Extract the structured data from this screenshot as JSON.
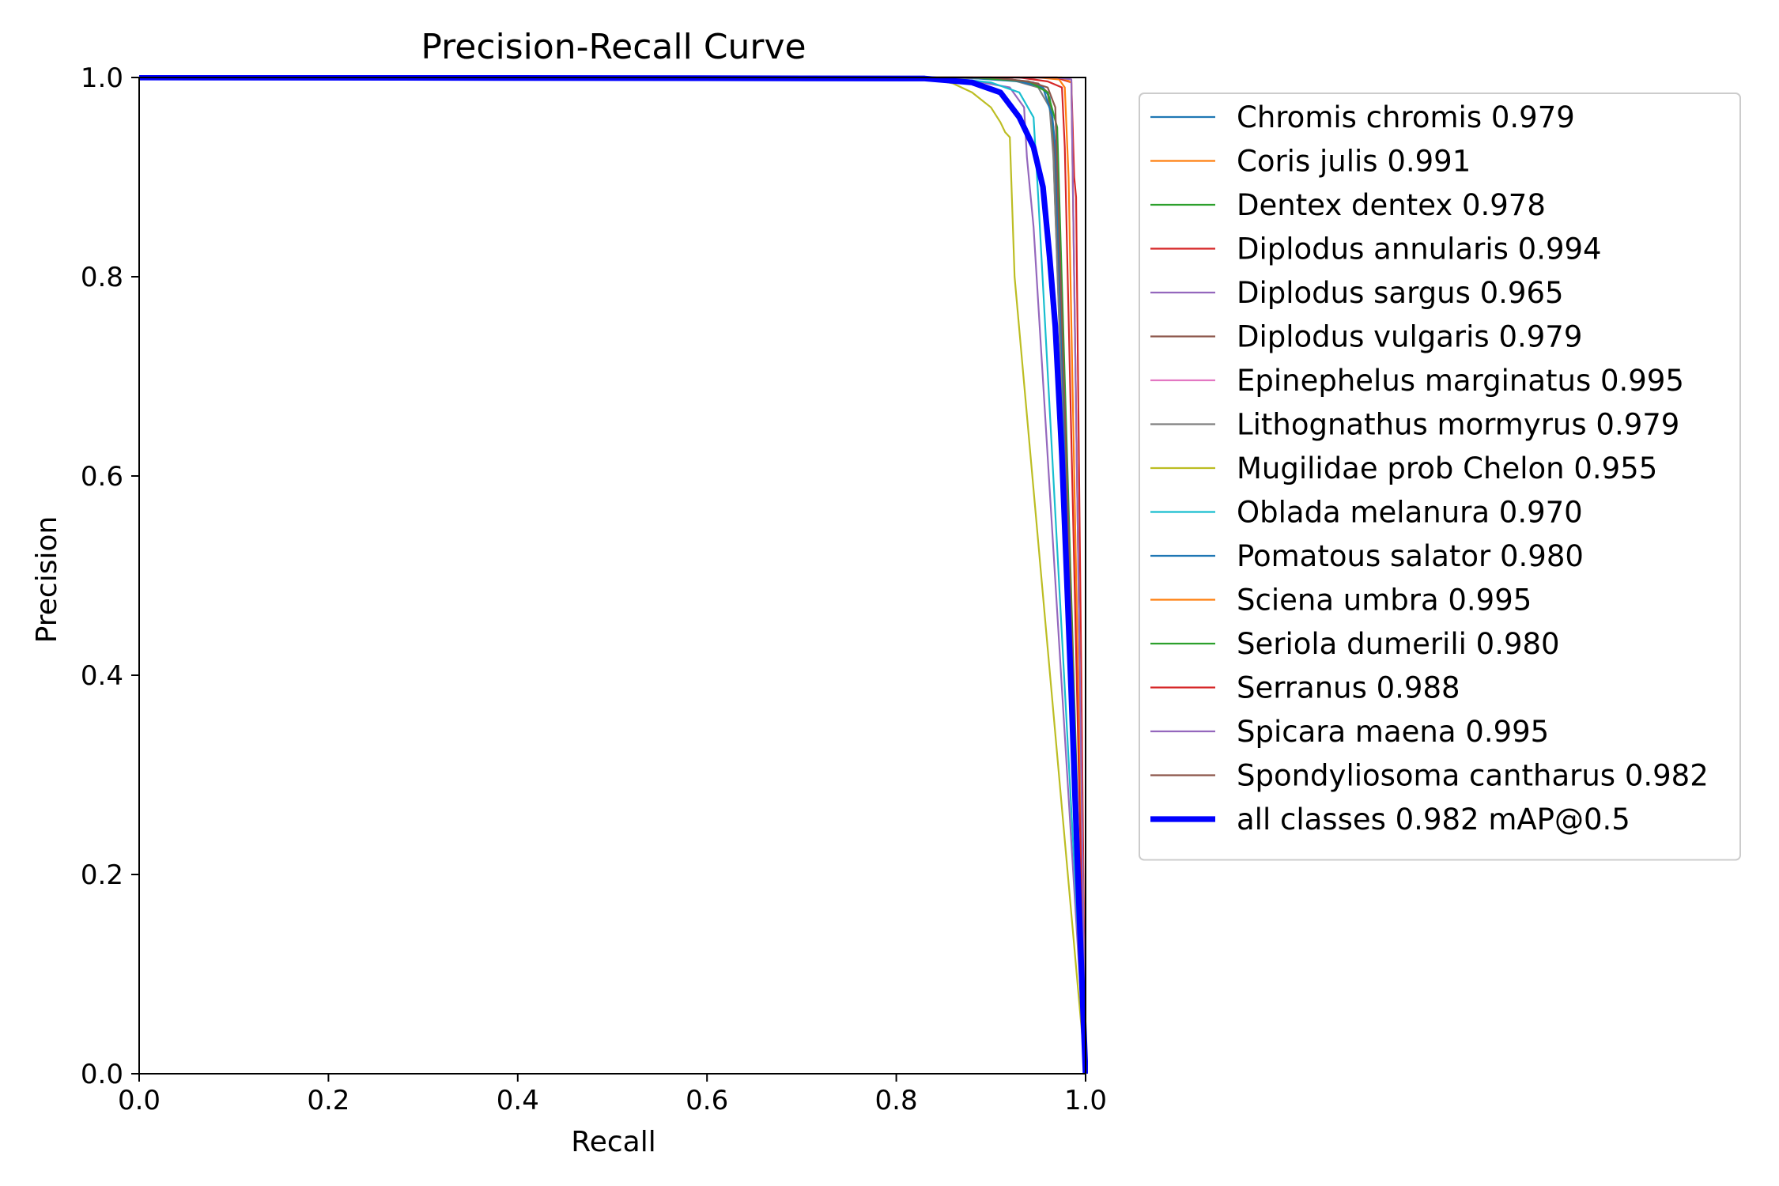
{
  "chart_data": {
    "type": "line",
    "title": "Precision-Recall Curve",
    "xlabel": "Recall",
    "ylabel": "Precision",
    "xlim": [
      0,
      1
    ],
    "ylim": [
      0,
      1
    ],
    "xticks": [
      "0.0",
      "0.2",
      "0.4",
      "0.6",
      "0.8",
      "1.0"
    ],
    "yticks": [
      "0.0",
      "0.2",
      "0.4",
      "0.6",
      "0.8",
      "1.0"
    ],
    "grid": false,
    "legend_position": "outside-right",
    "series": [
      {
        "name": "Chromis chromis 0.979",
        "color": "#1f77b4",
        "width": 1.5,
        "points": [
          [
            0,
            1
          ],
          [
            0.85,
            1
          ],
          [
            0.92,
            0.998
          ],
          [
            0.945,
            0.995
          ],
          [
            0.955,
            0.99
          ],
          [
            0.962,
            0.98
          ],
          [
            0.965,
            0.96
          ],
          [
            1.0,
            0
          ]
        ]
      },
      {
        "name": "Coris julis 0.991",
        "color": "#ff7f0e",
        "width": 1.5,
        "points": [
          [
            0,
            1
          ],
          [
            0.95,
            1
          ],
          [
            0.972,
            0.998
          ],
          [
            0.978,
            0.99
          ],
          [
            0.982,
            0.9
          ],
          [
            1.0,
            0
          ]
        ]
      },
      {
        "name": "Dentex dentex 0.978",
        "color": "#2ca02c",
        "width": 1.5,
        "points": [
          [
            0,
            1
          ],
          [
            0.88,
            1
          ],
          [
            0.93,
            0.997
          ],
          [
            0.95,
            0.993
          ],
          [
            0.96,
            0.985
          ],
          [
            0.965,
            0.95
          ],
          [
            1.0,
            0
          ]
        ]
      },
      {
        "name": "Diplodus annularis 0.994",
        "color": "#d62728",
        "width": 1.5,
        "points": [
          [
            0,
            1
          ],
          [
            0.97,
            1
          ],
          [
            0.975,
            0.998
          ],
          [
            0.985,
            0.995
          ],
          [
            0.988,
            0.9
          ],
          [
            0.99,
            0.88
          ],
          [
            1.0,
            0
          ]
        ]
      },
      {
        "name": "Diplodus sargus 0.965",
        "color": "#9467bd",
        "width": 1.5,
        "points": [
          [
            0,
            1
          ],
          [
            0.84,
            1
          ],
          [
            0.88,
            0.997
          ],
          [
            0.92,
            0.99
          ],
          [
            0.935,
            0.97
          ],
          [
            0.938,
            0.92
          ],
          [
            0.945,
            0.85
          ],
          [
            1.0,
            0
          ]
        ]
      },
      {
        "name": "Diplodus vulgaris 0.979",
        "color": "#8c564b",
        "width": 1.5,
        "points": [
          [
            0,
            1
          ],
          [
            0.86,
            1
          ],
          [
            0.92,
            0.998
          ],
          [
            0.95,
            0.994
          ],
          [
            0.96,
            0.985
          ],
          [
            0.966,
            0.95
          ],
          [
            1.0,
            0
          ]
        ]
      },
      {
        "name": "Epinephelus marginatus 0.995",
        "color": "#e377c2",
        "width": 1.5,
        "points": [
          [
            0,
            1
          ],
          [
            0.97,
            1
          ],
          [
            0.985,
            0.998
          ],
          [
            1.0,
            0
          ]
        ]
      },
      {
        "name": "Lithognathus mormyrus 0.979",
        "color": "#7f7f7f",
        "width": 1.5,
        "points": [
          [
            0,
            1
          ],
          [
            0.86,
            1
          ],
          [
            0.92,
            0.998
          ],
          [
            0.95,
            0.99
          ],
          [
            0.962,
            0.97
          ],
          [
            0.966,
            0.92
          ],
          [
            1.0,
            0
          ]
        ]
      },
      {
        "name": "Mugilidae prob Chelon 0.955",
        "color": "#bcbd22",
        "width": 1.5,
        "points": [
          [
            0,
            1
          ],
          [
            0.83,
            1
          ],
          [
            0.86,
            0.994
          ],
          [
            0.88,
            0.985
          ],
          [
            0.9,
            0.97
          ],
          [
            0.91,
            0.955
          ],
          [
            0.915,
            0.945
          ],
          [
            0.92,
            0.94
          ],
          [
            0.925,
            0.8
          ],
          [
            1.0,
            0
          ]
        ]
      },
      {
        "name": "Oblada melanura 0.970",
        "color": "#17becf",
        "width": 1.5,
        "points": [
          [
            0,
            1
          ],
          [
            0.85,
            1
          ],
          [
            0.9,
            0.995
          ],
          [
            0.93,
            0.985
          ],
          [
            0.945,
            0.96
          ],
          [
            0.95,
            0.88
          ],
          [
            1.0,
            0
          ]
        ]
      },
      {
        "name": "Pomatous salator 0.980",
        "color": "#1f77b4",
        "width": 1.5,
        "points": [
          [
            0,
            1
          ],
          [
            0.87,
            1
          ],
          [
            0.93,
            0.996
          ],
          [
            0.955,
            0.99
          ],
          [
            0.965,
            0.96
          ],
          [
            0.968,
            0.93
          ],
          [
            1.0,
            0
          ]
        ]
      },
      {
        "name": "Sciena umbra 0.995",
        "color": "#ff7f0e",
        "width": 1.5,
        "points": [
          [
            0,
            1
          ],
          [
            0.975,
            1
          ],
          [
            0.985,
            0.995
          ],
          [
            1.0,
            0
          ]
        ]
      },
      {
        "name": "Seriola dumerili 0.980",
        "color": "#2ca02c",
        "width": 1.5,
        "points": [
          [
            0,
            1
          ],
          [
            0.88,
            1
          ],
          [
            0.94,
            0.996
          ],
          [
            0.96,
            0.985
          ],
          [
            0.97,
            0.95
          ],
          [
            1.0,
            0
          ]
        ]
      },
      {
        "name": "Serranus 0.988",
        "color": "#d62728",
        "width": 1.5,
        "points": [
          [
            0,
            1
          ],
          [
            0.93,
            1
          ],
          [
            0.96,
            0.996
          ],
          [
            0.975,
            0.99
          ],
          [
            0.978,
            0.93
          ],
          [
            1.0,
            0
          ]
        ]
      },
      {
        "name": "Spicara maena 0.995",
        "color": "#9467bd",
        "width": 1.5,
        "points": [
          [
            0,
            1
          ],
          [
            0.97,
            1
          ],
          [
            0.985,
            0.998
          ],
          [
            1.0,
            0
          ]
        ]
      },
      {
        "name": "Spondyliosoma cantharus 0.982",
        "color": "#8c564b",
        "width": 1.5,
        "points": [
          [
            0,
            1
          ],
          [
            0.9,
            1
          ],
          [
            0.94,
            0.996
          ],
          [
            0.96,
            0.99
          ],
          [
            0.968,
            0.97
          ],
          [
            1.0,
            0
          ]
        ]
      },
      {
        "name": "all classes 0.982 mAP@0.5",
        "color": "#0000ff",
        "width": 5,
        "points": [
          [
            0,
            1
          ],
          [
            0.83,
            0.999
          ],
          [
            0.88,
            0.995
          ],
          [
            0.91,
            0.985
          ],
          [
            0.93,
            0.96
          ],
          [
            0.945,
            0.93
          ],
          [
            0.955,
            0.89
          ],
          [
            0.962,
            0.82
          ],
          [
            0.968,
            0.75
          ],
          [
            0.975,
            0.62
          ],
          [
            0.98,
            0.5
          ],
          [
            0.985,
            0.38
          ],
          [
            0.99,
            0.25
          ],
          [
            0.995,
            0.12
          ],
          [
            1.0,
            0
          ]
        ]
      }
    ]
  }
}
